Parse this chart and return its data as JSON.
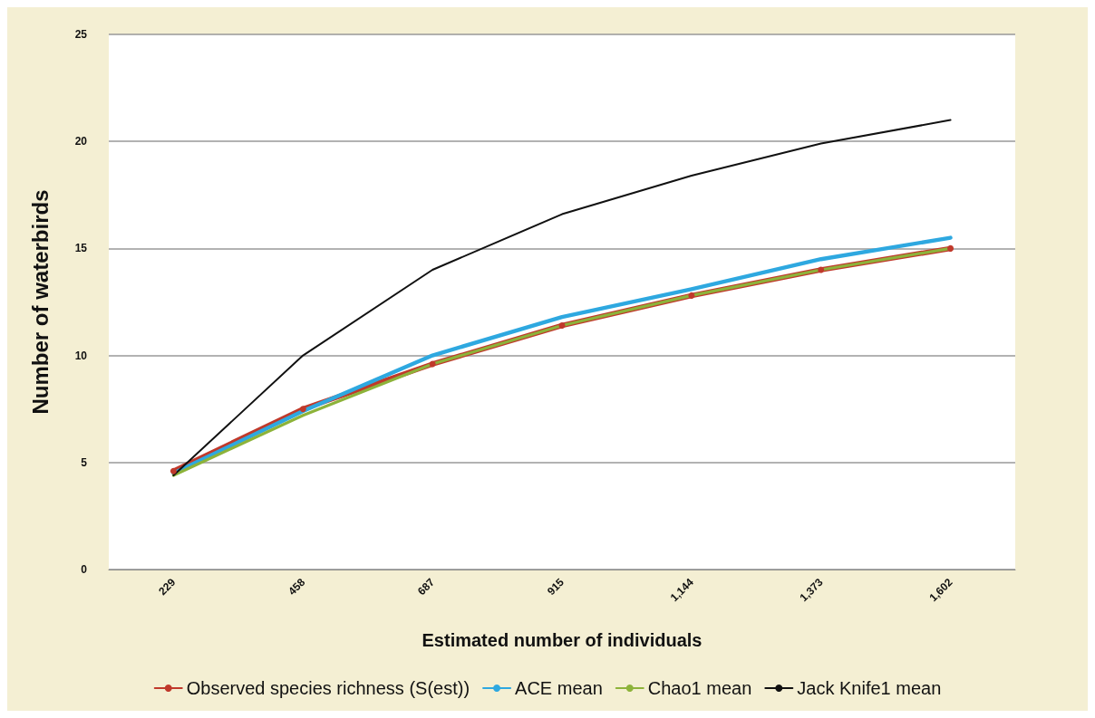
{
  "chart_data": {
    "type": "line",
    "xlabel": "Estimated number of individuals",
    "ylabel": "Number of waterbirds",
    "categories": [
      "229",
      "458",
      "687",
      "915",
      "1,144",
      "1,373",
      "1,602"
    ],
    "series": [
      {
        "name": "Observed species richness (S(est))",
        "color": "#c0392b",
        "marker": "circle",
        "values": [
          4.6,
          7.5,
          9.6,
          11.4,
          12.8,
          14.0,
          15.0
        ]
      },
      {
        "name": "ACE mean",
        "color": "#2ea8e0",
        "marker": "none",
        "values": [
          4.5,
          7.4,
          10.0,
          11.8,
          13.1,
          14.5,
          15.5
        ]
      },
      {
        "name": "Chao1 mean",
        "color": "#8db33a",
        "marker": "none",
        "values": [
          4.4,
          7.2,
          9.6,
          11.4,
          12.8,
          14.0,
          15.0
        ]
      },
      {
        "name": "Jack Knife1 mean",
        "color": "#111111",
        "marker": "none",
        "values": [
          4.4,
          10.0,
          14.0,
          16.6,
          18.4,
          19.9,
          21.0
        ]
      }
    ],
    "ylim": [
      0,
      25
    ],
    "yticks": [
      0,
      5,
      10,
      15,
      20,
      25
    ],
    "grid": "y",
    "legend": "bottom",
    "line_style": "solid"
  }
}
